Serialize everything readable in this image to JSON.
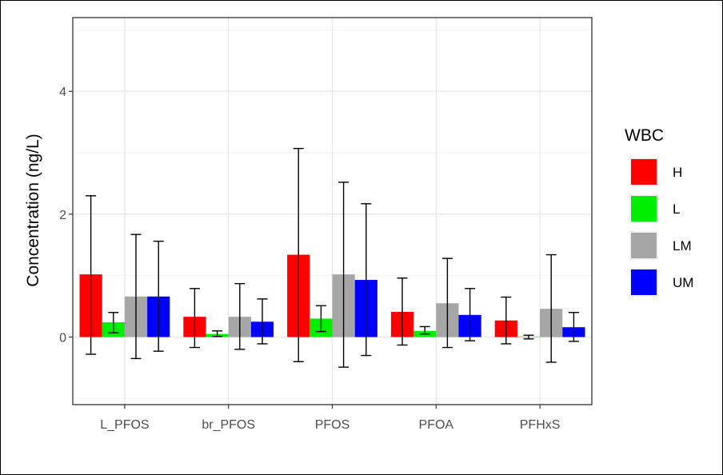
{
  "chart_data": {
    "type": "bar",
    "title": "",
    "xlabel": "",
    "ylabel": "Concentration (ng/L)",
    "categories": [
      "L_PFOS",
      "br_PFOS",
      "PFOS",
      "PFOA",
      "PFHxS"
    ],
    "ylim": [
      -1.1,
      5.2
    ],
    "yticks": [
      0,
      2,
      4
    ],
    "grid": true,
    "legend": {
      "title": "WBC",
      "position": "right"
    },
    "series": [
      {
        "name": "H",
        "color": "#ff0000",
        "values": [
          1.02,
          0.33,
          1.34,
          0.41,
          0.27
        ],
        "error_low": [
          -0.28,
          -0.17,
          -0.4,
          -0.13,
          -0.11
        ],
        "error_high": [
          2.3,
          0.79,
          3.07,
          0.96,
          0.65
        ]
      },
      {
        "name": "L",
        "color": "#00ee00",
        "values": [
          0.24,
          0.05,
          0.3,
          0.1,
          0.0
        ],
        "error_low": [
          0.07,
          0.01,
          0.09,
          0.05,
          -0.03
        ],
        "error_high": [
          0.4,
          0.1,
          0.51,
          0.17,
          0.03
        ]
      },
      {
        "name": "LM",
        "color": "#a6a6a6",
        "values": [
          0.66,
          0.33,
          1.02,
          0.55,
          0.46
        ],
        "error_low": [
          -0.35,
          -0.2,
          -0.49,
          -0.17,
          -0.41
        ],
        "error_high": [
          1.67,
          0.87,
          2.52,
          1.28,
          1.34
        ]
      },
      {
        "name": "UM",
        "color": "#0000ff",
        "values": [
          0.66,
          0.25,
          0.93,
          0.36,
          0.16
        ],
        "error_low": [
          -0.23,
          -0.11,
          -0.3,
          -0.06,
          -0.07
        ],
        "error_high": [
          1.56,
          0.62,
          2.17,
          0.79,
          0.4
        ]
      }
    ]
  }
}
